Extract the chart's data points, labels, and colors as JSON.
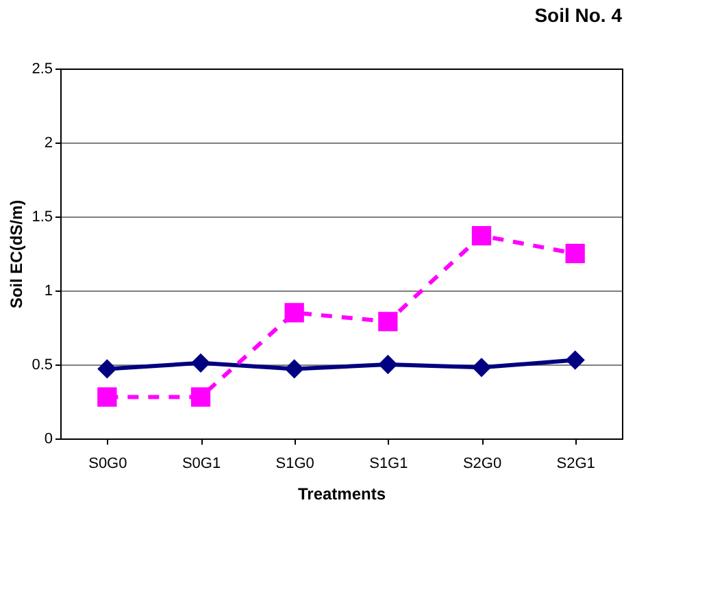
{
  "chart_data": {
    "type": "line",
    "title": "Soil No. 4",
    "xlabel": "Treatments",
    "ylabel": "Soil EC(dS/m)",
    "categories": [
      "S0G0",
      "S0G1",
      "S1G0",
      "S1G1",
      "S2G0",
      "S2G1"
    ],
    "series": [
      {
        "color": "#000080",
        "marker": "diamond",
        "line_style": "solid",
        "values": [
          0.47,
          0.51,
          0.47,
          0.5,
          0.48,
          0.53
        ]
      },
      {
        "color": "#ff00ff",
        "marker": "square",
        "line_style": "dashed",
        "values": [
          0.28,
          0.28,
          0.85,
          0.79,
          1.37,
          1.25
        ]
      }
    ],
    "ylim": [
      0,
      2.5
    ],
    "yticks": [
      0,
      0.5,
      1,
      1.5,
      2,
      2.5
    ],
    "grid": "y"
  }
}
